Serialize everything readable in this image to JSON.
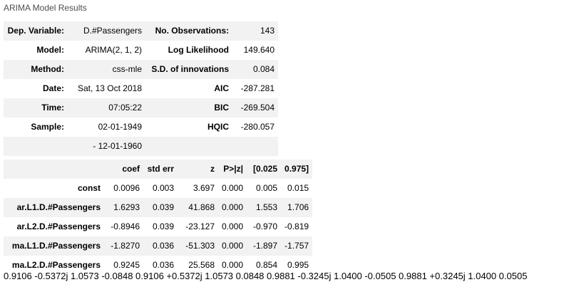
{
  "caption": "ARIMA Model Results",
  "summary": {
    "rows": [
      [
        "Dep. Variable:",
        "D.#Passengers",
        "No. Observations:",
        "143"
      ],
      [
        "Model:",
        "ARIMA(2, 1, 2)",
        "Log Likelihood",
        "149.640"
      ],
      [
        "Method:",
        "css-mle",
        "S.D. of innovations",
        "0.084"
      ],
      [
        "Date:",
        "Sat, 13 Oct 2018",
        "AIC",
        "-287.281"
      ],
      [
        "Time:",
        "07:05:22",
        "BIC",
        "-269.504"
      ],
      [
        "Sample:",
        "02-01-1949",
        "HQIC",
        "-280.057"
      ],
      [
        "",
        "- 12-01-1960",
        "",
        ""
      ]
    ]
  },
  "coefficients": {
    "headers": [
      "",
      "coef",
      "std err",
      "z",
      "P>|z|",
      "[0.025",
      "0.975]"
    ],
    "rows": [
      [
        "const",
        "0.0096",
        "0.003",
        "3.697",
        "0.000",
        "0.005",
        "0.015"
      ],
      [
        "ar.L1.D.#Passengers",
        "1.6293",
        "0.039",
        "41.868",
        "0.000",
        "1.553",
        "1.706"
      ],
      [
        "ar.L2.D.#Passengers",
        "-0.8946",
        "0.039",
        "-23.127",
        "0.000",
        "-0.970",
        "-0.819"
      ],
      [
        "ma.L1.D.#Passengers",
        "-1.8270",
        "0.036",
        "-51.303",
        "0.000",
        "-1.897",
        "-1.757"
      ],
      [
        "ma.L2.D.#Passengers",
        "0.9245",
        "0.036",
        "25.568",
        "0.000",
        "0.854",
        "0.995"
      ]
    ]
  },
  "roots_text": "0.9106 -0.5372j 1.0573 -0.0848 0.9106 +0.5372j 1.0573 0.0848 0.9881 -0.3245j 1.0400 -0.0505 0.9881 +0.3245j 1.0400 0.0505"
}
